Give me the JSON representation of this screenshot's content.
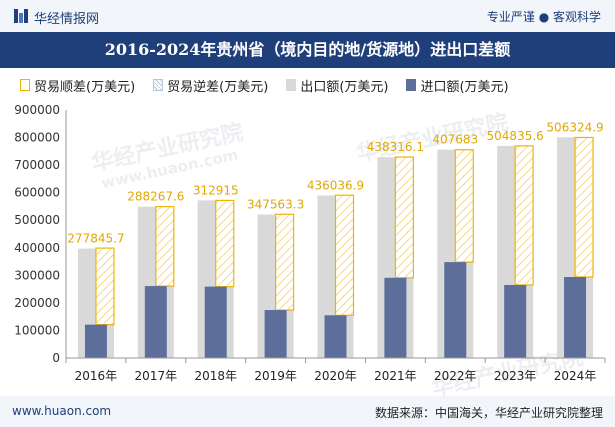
{
  "header": {
    "logo_text": "华经情报网",
    "tagline": "专业严谨 ● 客观科学"
  },
  "footer": {
    "url": "www.huaon.com",
    "source": "数据来源：中国海关，华经产业研究院整理"
  },
  "watermark": {
    "text": "华经产业研究院",
    "url": "www.huaon.com"
  },
  "colors": {
    "export_bar": "#d9d9d9",
    "import_bar": "#5d6e9a",
    "surplus_outline": "#f0b400",
    "surplus_label": "#e0a800",
    "title_bar": "#1f3f7a"
  },
  "chart_data": {
    "type": "bar",
    "title": "2016-2024年贵州省（境内目的地/货源地）进出口差额",
    "categories": [
      "2016年",
      "2017年",
      "2018年",
      "2019年",
      "2020年",
      "2021年",
      "2022年",
      "2023年",
      "2024年"
    ],
    "series": [
      {
        "name": "贸易顺差(万美元)",
        "values": [
          277845.7,
          288267.6,
          312915,
          347563.3,
          436036.9,
          438316.1,
          407683,
          504835.6,
          506324.9
        ]
      },
      {
        "name": "贸易逆差(万美元)",
        "values": [
          0,
          0,
          0,
          0,
          0,
          0,
          0,
          0,
          0
        ]
      },
      {
        "name": "出口额(万美元)",
        "values": [
          397000,
          549000,
          572000,
          521000,
          590000,
          729000,
          756000,
          770000,
          801000
        ]
      },
      {
        "name": "进口额(万美元)",
        "values": [
          121000,
          261000,
          259000,
          174000,
          155000,
          291000,
          348000,
          265000,
          294000
        ]
      }
    ],
    "surplus_labels": [
      "277845.7",
      "288267.6",
      "312915",
      "347563.3",
      "436036.9",
      "438316.1",
      "407683",
      "504835.6",
      "506324.9"
    ],
    "yticks": [
      "0",
      "100000",
      "200000",
      "300000",
      "400000",
      "500000",
      "600000",
      "700000",
      "800000",
      "900000"
    ],
    "ylim": [
      0,
      900000
    ],
    "grid": false,
    "legend_position": "top"
  }
}
